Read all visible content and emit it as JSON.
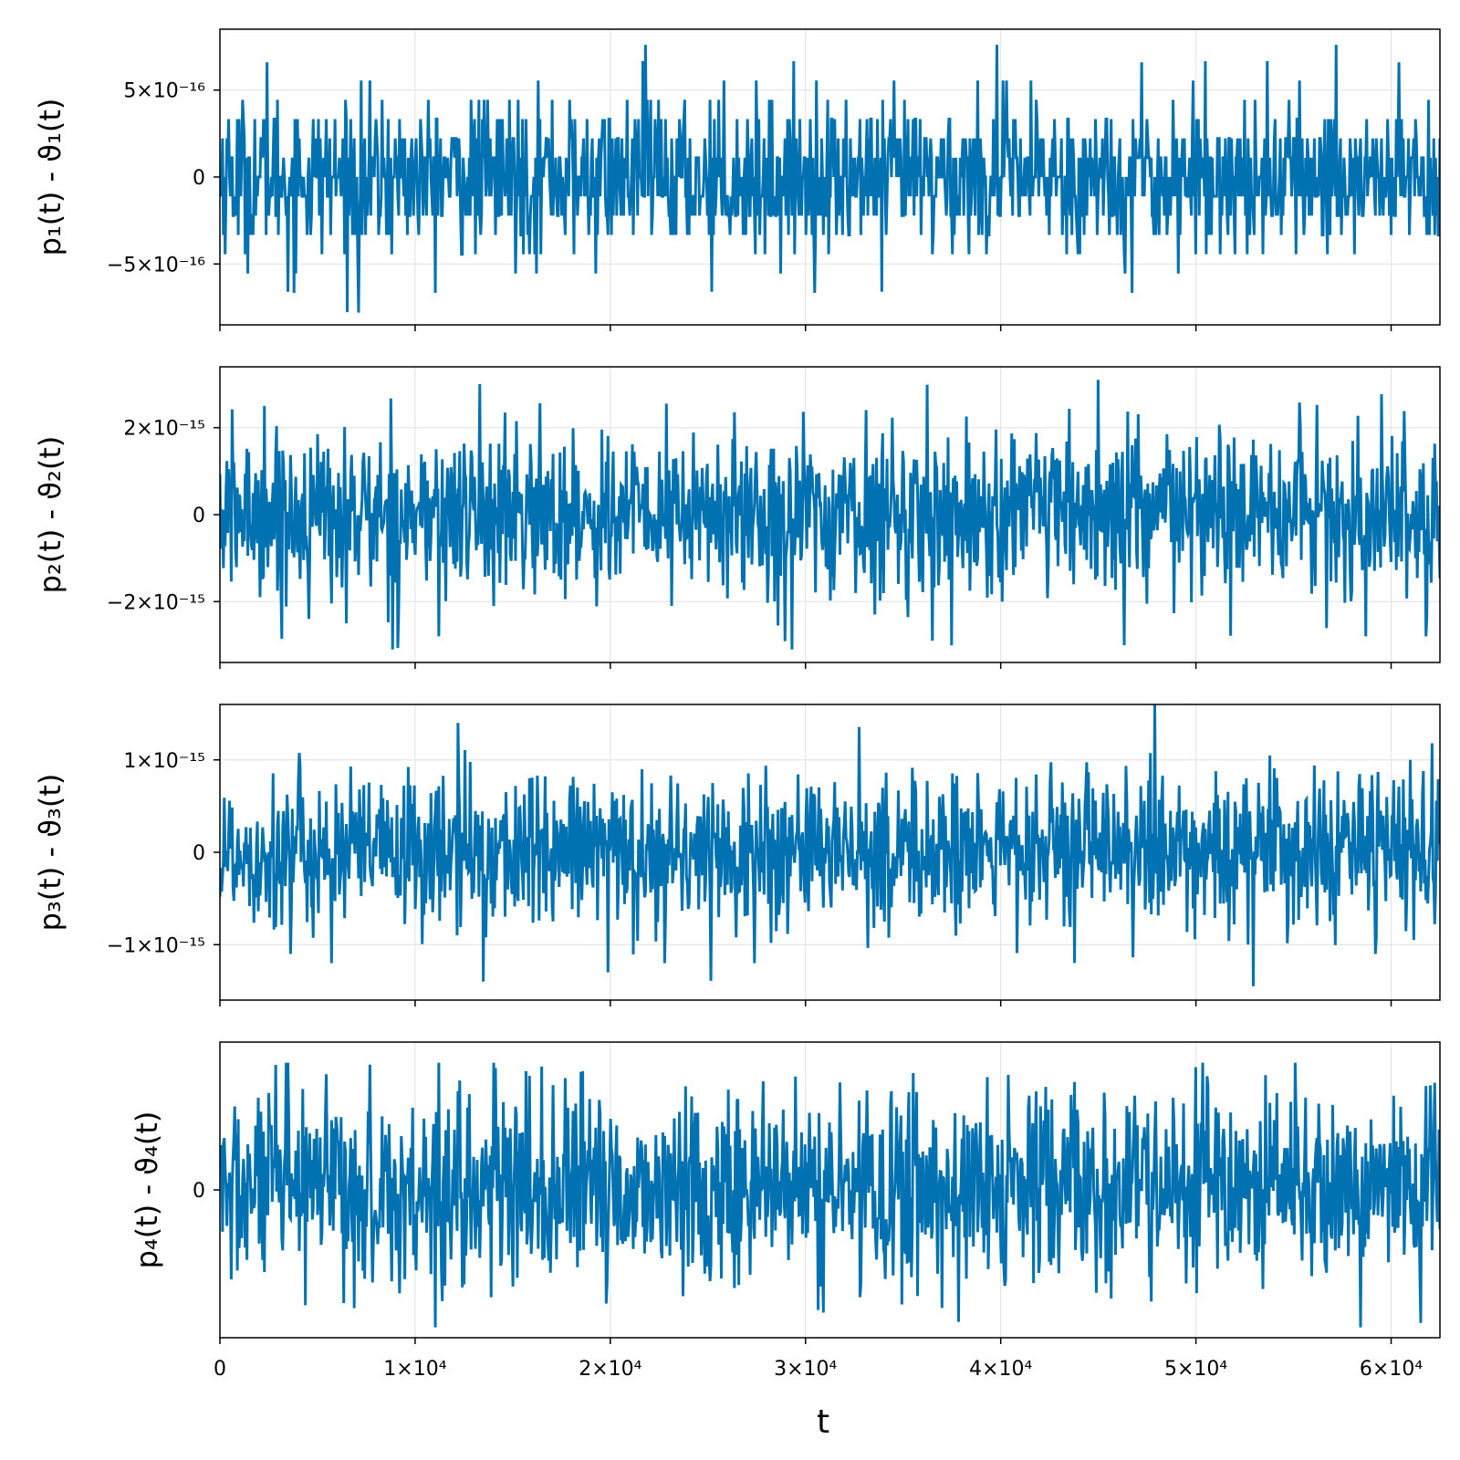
{
  "chart_data": [
    {
      "type": "line",
      "ylabel": "p₁(t) - ϑ₁(t)",
      "xlim": [
        0,
        62500
      ],
      "ylim": [
        -8.5e-16,
        8.5e-16
      ],
      "yticks": [
        -5e-16,
        0,
        5e-16
      ],
      "ytick_labels": [
        "−5×10⁻¹⁶",
        "0",
        "5×10⁻¹⁶"
      ],
      "grid": true,
      "color": "#0072b2",
      "series": [
        {
          "noise": {
            "amplitude": 2.2e-16,
            "quantum": 1.11e-16,
            "min": -7.8e-16,
            "max": 7.8e-16
          },
          "spikes": [
            {
              "x": 2400,
              "y": 6.6e-16
            },
            {
              "x": 7100,
              "y": -7.8e-16
            },
            {
              "x": 21800,
              "y": 7.6e-16
            },
            {
              "x": 25200,
              "y": -6.6e-16
            },
            {
              "x": 33900,
              "y": -6.6e-16
            },
            {
              "x": 39800,
              "y": 7.6e-16
            },
            {
              "x": 57200,
              "y": 7.6e-16
            },
            {
              "x": 60400,
              "y": 6.6e-16
            },
            {
              "x": 3500,
              "y": -6.6e-16
            },
            {
              "x": 47200,
              "y": 6.6e-16
            }
          ]
        }
      ]
    },
    {
      "type": "line",
      "ylabel": "p₂(t) - ϑ₂(t)",
      "xlim": [
        0,
        62500
      ],
      "ylim": [
        -3.4e-15,
        3.4e-15
      ],
      "yticks": [
        -2e-15,
        0,
        2e-15
      ],
      "ytick_labels": [
        "−2×10⁻¹⁵",
        "0",
        "2×10⁻¹⁵"
      ],
      "grid": true,
      "color": "#0072b2",
      "series": [
        {
          "noise": {
            "amplitude": 9.5e-16,
            "quantum": 0,
            "min": -3.1e-15,
            "max": 3.1e-15
          },
          "spikes": [
            {
              "x": 13300,
              "y": 3e-15
            },
            {
              "x": 11200,
              "y": -2.8e-15
            },
            {
              "x": 29300,
              "y": -3.1e-15
            },
            {
              "x": 45000,
              "y": 3.1e-15
            },
            {
              "x": 36500,
              "y": -2.9e-15
            },
            {
              "x": 58700,
              "y": -2.8e-15
            },
            {
              "x": 61800,
              "y": -2.8e-15
            },
            {
              "x": 2300,
              "y": 2.5e-15
            },
            {
              "x": 6500,
              "y": -2.5e-15
            }
          ]
        }
      ]
    },
    {
      "type": "line",
      "ylabel": "p₃(t) - ϑ₃(t)",
      "xlim": [
        0,
        62500
      ],
      "ylim": [
        -1.6e-15,
        1.6e-15
      ],
      "yticks": [
        -1e-15,
        0,
        1e-15
      ],
      "ytick_labels": [
        "−1×10⁻¹⁵",
        "0",
        "1×10⁻¹⁵"
      ],
      "grid": true,
      "color": "#0072b2",
      "series": [
        {
          "noise": {
            "amplitude": 4.2e-16,
            "quantum": 0,
            "min": -1.45e-15,
            "max": 1.6e-15
          },
          "spikes": [
            {
              "x": 47900,
              "y": 1.6e-15
            },
            {
              "x": 13500,
              "y": -1.4e-15
            },
            {
              "x": 19900,
              "y": -1.3e-15
            },
            {
              "x": 12200,
              "y": 1.4e-15
            },
            {
              "x": 5700,
              "y": -1.2e-15
            },
            {
              "x": 22800,
              "y": -1.2e-15
            },
            {
              "x": 27400,
              "y": -1.2e-15
            },
            {
              "x": 3600,
              "y": -1.1e-15
            },
            {
              "x": 59200,
              "y": -1.1e-15
            }
          ]
        }
      ]
    },
    {
      "type": "line",
      "ylabel": "p₄(t) - ϑ₄(t)",
      "xlabel": "t",
      "xlim": [
        0,
        62500
      ],
      "ylim": [
        -1.0,
        1.0
      ],
      "yticks": [
        0
      ],
      "ytick_labels": [
        "0"
      ],
      "xticks": [
        0,
        10000,
        20000,
        30000,
        40000,
        50000,
        60000
      ],
      "xtick_labels": [
        "0",
        "1×10⁴",
        "2×10⁴",
        "3×10⁴",
        "4×10⁴",
        "5×10⁴",
        "6×10⁴"
      ],
      "grid": true,
      "color": "#0072b2",
      "series": [
        {
          "noise": {
            "amplitude": 0.33,
            "quantum": 0,
            "min": -0.93,
            "max": 0.86
          },
          "spikes": [
            {
              "x": 3500,
              "y": 0.86
            },
            {
              "x": 11200,
              "y": 0.86
            },
            {
              "x": 4400,
              "y": -0.78
            },
            {
              "x": 6900,
              "y": -0.8
            },
            {
              "x": 30900,
              "y": -0.83
            },
            {
              "x": 61500,
              "y": -0.9
            },
            {
              "x": 50000,
              "y": 0.83
            },
            {
              "x": 9200,
              "y": -0.7
            }
          ]
        }
      ]
    }
  ]
}
